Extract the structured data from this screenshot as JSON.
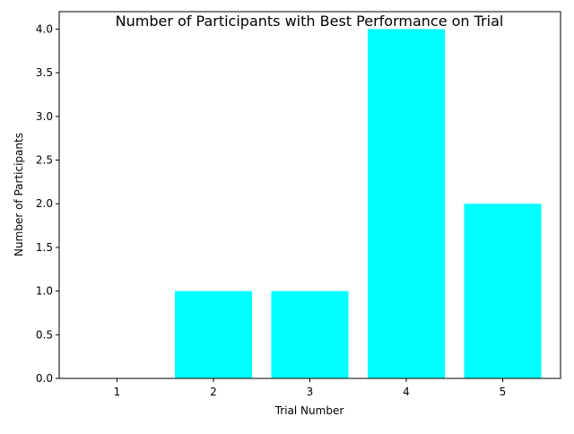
{
  "chart_data": {
    "type": "bar",
    "title": "Number of Participants with Best Performance on Trial",
    "xlabel": "Trial Number",
    "ylabel": "Number of Participants",
    "categories": [
      "1",
      "2",
      "3",
      "4",
      "5"
    ],
    "values": [
      0,
      1,
      1,
      4,
      2
    ],
    "ylim": [
      0,
      4.2
    ],
    "yticks": [
      "0.0",
      "0.5",
      "1.0",
      "1.5",
      "2.0",
      "2.5",
      "3.0",
      "3.5",
      "4.0"
    ],
    "bar_color": "#00ffff",
    "grid": false,
    "legend": "none"
  }
}
